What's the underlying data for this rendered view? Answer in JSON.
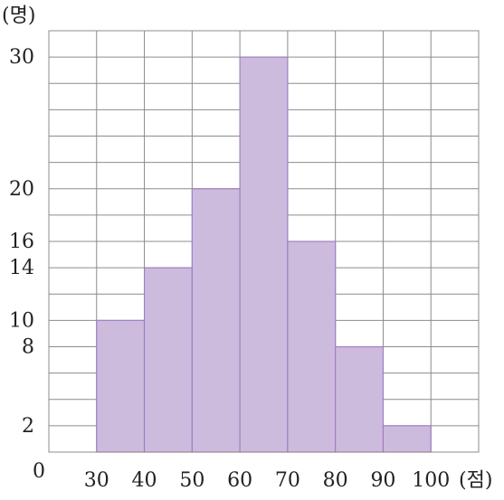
{
  "chart_data": {
    "type": "bar",
    "subtype": "histogram",
    "y_unit": "(명)",
    "x_unit": "(점)",
    "origin_label": "0",
    "bin_edges": [
      30,
      40,
      50,
      60,
      70,
      80,
      90,
      100
    ],
    "values": [
      10,
      14,
      20,
      30,
      16,
      8,
      2
    ],
    "xlim": [
      20,
      110
    ],
    "ylim": [
      0,
      32
    ],
    "x_ticks": [
      "30",
      "40",
      "50",
      "60",
      "70",
      "80",
      "90",
      "100"
    ],
    "y_ticks": [
      "2",
      "8",
      "10",
      "14",
      "16",
      "20",
      "30"
    ],
    "grid": true,
    "bar_color": "#cdbbdd",
    "bar_edge_color": "#a27fc0",
    "grid_color": "#8c8c8c"
  }
}
